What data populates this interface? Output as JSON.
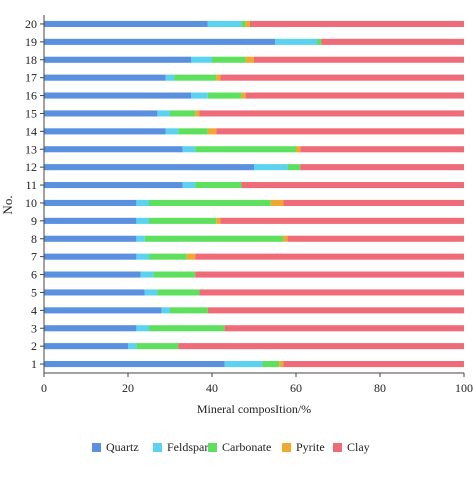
{
  "chart_data": {
    "type": "bar",
    "orientation": "horizontal",
    "stacked": true,
    "xlabel": "Mineral composItion/%",
    "ylabel": "No.",
    "xlim": [
      0,
      100
    ],
    "xticks": [
      0,
      20,
      40,
      60,
      80,
      100
    ],
    "categories": [
      "1",
      "2",
      "3",
      "4",
      "5",
      "6",
      "7",
      "8",
      "9",
      "10",
      "11",
      "12",
      "13",
      "14",
      "15",
      "16",
      "17",
      "18",
      "19",
      "20"
    ],
    "legend_position": "bottom",
    "grid": false,
    "series": [
      {
        "name": "Quartz",
        "color": "#5b8fe0",
        "values": [
          43,
          20,
          22,
          28,
          24,
          23,
          22,
          22,
          22,
          22,
          33,
          50,
          33,
          29,
          27,
          35,
          29,
          35,
          55,
          39
        ]
      },
      {
        "name": "Feldspar",
        "color": "#5bd3f0",
        "values": [
          9,
          2,
          3,
          2,
          3,
          3,
          3,
          2,
          3,
          3,
          3,
          8,
          3,
          3,
          3,
          4,
          2,
          5,
          10,
          8
        ]
      },
      {
        "name": "Carbonate",
        "color": "#5ee05e",
        "values": [
          4,
          10,
          18,
          9,
          10,
          10,
          9,
          33,
          16,
          29,
          11,
          3,
          24,
          7,
          6,
          8,
          10,
          8,
          1,
          1
        ]
      },
      {
        "name": "Pyrite",
        "color": "#f0a830",
        "values": [
          1,
          0,
          0,
          0,
          0,
          0,
          2,
          1,
          1,
          3,
          0,
          0,
          1,
          2,
          1,
          1,
          1,
          2,
          0,
          1
        ]
      },
      {
        "name": "Clay",
        "color": "#f06b78",
        "values": [
          43,
          68,
          57,
          61,
          63,
          64,
          64,
          42,
          58,
          43,
          53,
          39,
          39,
          59,
          63,
          52,
          58,
          50,
          34,
          51
        ]
      }
    ]
  }
}
